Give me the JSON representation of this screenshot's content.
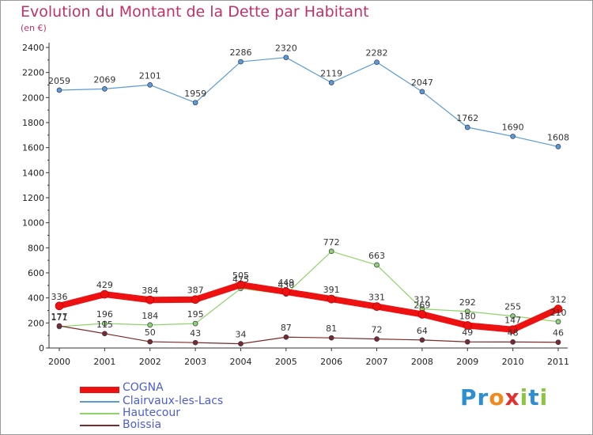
{
  "chart_data": {
    "type": "line",
    "title": "Evolution du Montant de la Dette par Habitant",
    "subtitle": "(en €)",
    "xlabel": "",
    "ylabel": "",
    "categories": [
      "2000",
      "2001",
      "2002",
      "2003",
      "2004",
      "2005",
      "2006",
      "2007",
      "2008",
      "2009",
      "2010",
      "2011"
    ],
    "ylim": [
      0,
      2400
    ],
    "yticks": [
      "0",
      "200",
      "400",
      "600",
      "800",
      "1000",
      "1200",
      "1400",
      "1600",
      "1800",
      "2000",
      "2200",
      "2400"
    ],
    "series": [
      {
        "name": "Clairvaux-les-Lacs",
        "color": "#5b9bd5",
        "values": [
          2059,
          2069,
          2101,
          1959,
          2286,
          2320,
          2119,
          2282,
          2047,
          1762,
          1690,
          1608
        ],
        "labels": [
          "2059",
          "2069",
          "2101",
          "1959",
          "2286",
          "2320",
          "2119",
          "2282",
          "2047",
          "1762",
          "1690",
          "1608"
        ]
      },
      {
        "name": "Hautecour",
        "color": "#8fd36a",
        "values": [
          171,
          196,
          184,
          195,
          475,
          430,
          772,
          663,
          312,
          292,
          255,
          210
        ],
        "labels": [
          "171",
          "196",
          "184",
          "195",
          "475",
          "430",
          "772",
          "663",
          "312",
          "292",
          "255",
          "210"
        ]
      },
      {
        "name": "Boissia",
        "color": "#7a2a2a",
        "values": [
          177,
          115,
          50,
          43,
          34,
          87,
          81,
          72,
          64,
          49,
          48,
          46
        ],
        "labels": [
          "177",
          "115",
          "50",
          "43",
          "34",
          "87",
          "81",
          "72",
          "64",
          "49",
          "48",
          "46"
        ]
      },
      {
        "name": "COGNA",
        "color": "#ee1111",
        "values": [
          336,
          429,
          384,
          387,
          505,
          449,
          391,
          331,
          269,
          180,
          147,
          312
        ],
        "labels": [
          "336",
          "429",
          "384",
          "387",
          "505",
          "449",
          "391",
          "331",
          "269",
          "180",
          "147",
          "312"
        ]
      }
    ],
    "legend": [
      "COGNA",
      "Clairvaux-les-Lacs",
      "Hautecour",
      "Boissia"
    ],
    "legend_position": "bottom-left",
    "grid": false
  },
  "logo": {
    "p1": "Pr",
    "o": "o",
    "x": "x",
    "i1": "i",
    "t": "t",
    "i2": "i"
  }
}
